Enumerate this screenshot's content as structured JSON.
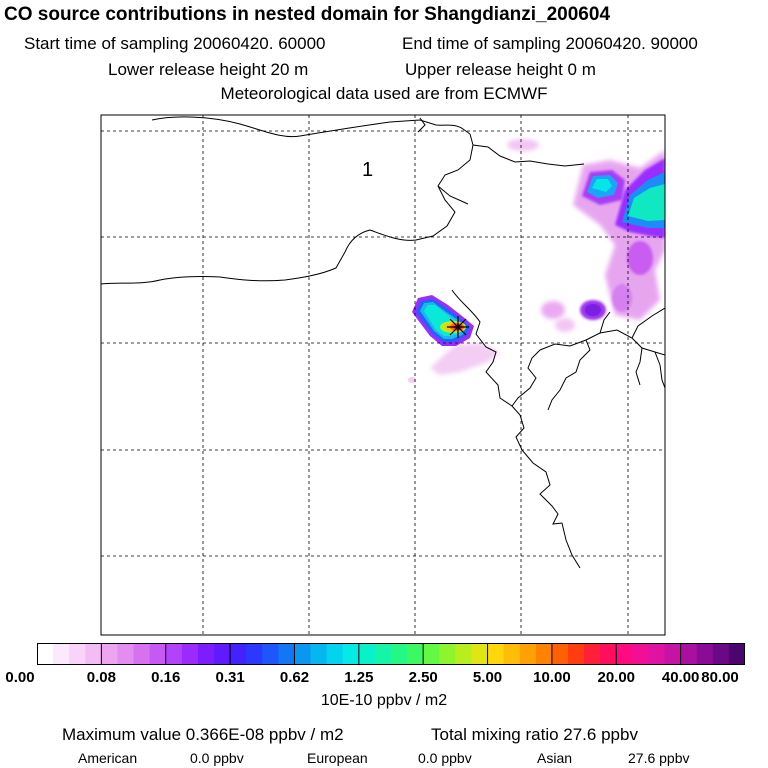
{
  "header": {
    "title": "CO  source contributions in nested domain for Shangdianzi_200604",
    "start_time": "Start time of sampling 20060420. 60000",
    "end_time": "End time of sampling 20060420. 90000",
    "lower_height": "Lower release height   20 m",
    "upper_height": "Upper release height    0 m",
    "met_data": "Meteorological data used are from ECMWF"
  },
  "map": {
    "region_label": "1",
    "station_marker": "star-marker"
  },
  "colorbar": {
    "ticks": [
      "0.00",
      "0.08",
      "0.16",
      "0.31",
      "0.62",
      "1.25",
      "2.50",
      "5.00",
      "10.00",
      "20.00",
      "40.00",
      "80.00"
    ],
    "unit": "10E-10 ppbv / m2",
    "colors": [
      "#ffffff",
      "#fde9fd",
      "#f9d3f9",
      "#f4bcf4",
      "#eda5f1",
      "#e38df0",
      "#d672f0",
      "#c659f4",
      "#b342fb",
      "#9a2aff",
      "#7d1dff",
      "#5f1aff",
      "#4322ff",
      "#2c38ff",
      "#1d57fb",
      "#1276f5",
      "#0b97f1",
      "#05b6ef",
      "#03d4ee",
      "#04ebe6",
      "#08f2c9",
      "#14f5a7",
      "#23f885",
      "#3cf963",
      "#62f843",
      "#8ef42c",
      "#b9ee1e",
      "#e1e613",
      "#ffd70b",
      "#ffbd07",
      "#ffa104",
      "#ff8203",
      "#ff6002",
      "#ff3d10",
      "#ff1f36",
      "#ff0e5e",
      "#ff0a80",
      "#f20f96",
      "#df12a1",
      "#c513a4",
      "#a910a0",
      "#8a0c96",
      "#6a0885",
      "#4c046f"
    ]
  },
  "summary": {
    "max_label": "Maximum value  0.366E-08 ppbv / m2",
    "total_label": "Total mixing ratio      27.6 ppbv",
    "american": "American",
    "american_val": "0.0 ppbv",
    "european": "European",
    "european_val": "0.0 ppbv",
    "asian": "Asian",
    "asian_val": "27.6 ppbv"
  }
}
